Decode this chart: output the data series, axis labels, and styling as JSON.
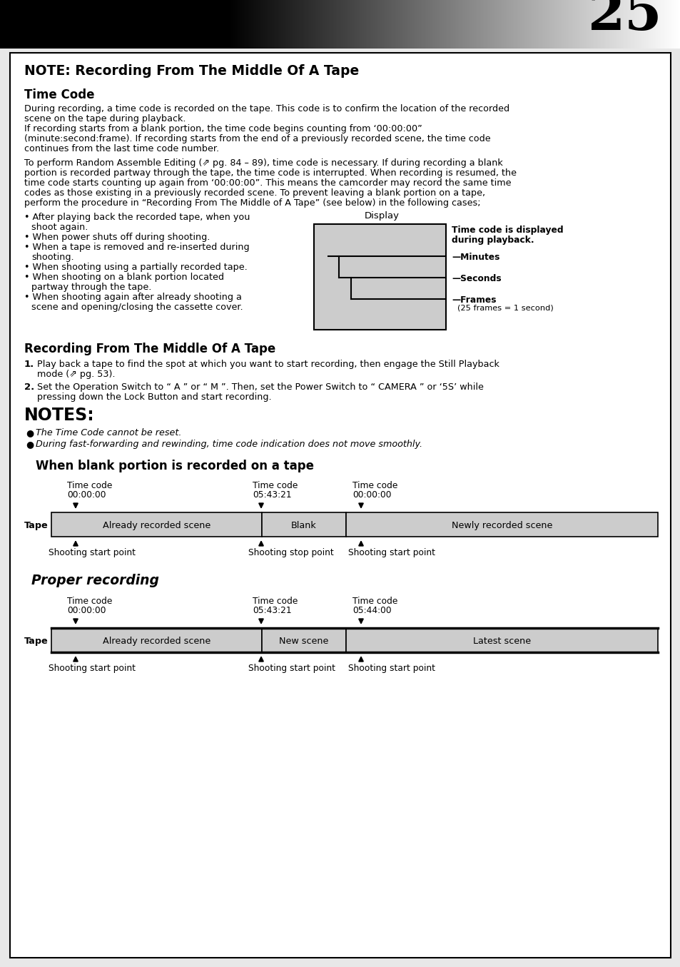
{
  "page_number": "25",
  "main_title": "NOTE: Recording From The Middle Of A Tape",
  "section1_title": "Time Code",
  "para1_lines": [
    "During recording, a time code is recorded on the tape. This code is to confirm the location of the recorded",
    "scene on the tape during playback.",
    "If recording starts from a blank portion, the time code begins counting from ‘00:00:00”",
    "(minute:second:frame). If recording starts from the end of a previously recorded scene, the time code",
    "continues from the last time code number."
  ],
  "para2_lines": [
    "To perform Random Assemble Editing (⇗ pg. 84 – 89), time code is necessary. If during recording a blank",
    "portion is recorded partway through the tape, the time code is interrupted. When recording is resumed, the",
    "time code starts counting up again from ‘00:00:00”. This means the camcorder may record the same time",
    "codes as those existing in a previously recorded scene. To prevent leaving a blank portion on a tape,",
    "perform the procedure in “Recording From The Middle of A Tape” (see below) in the following cases;"
  ],
  "bullets": [
    [
      "After playing back the recorded tape, when you",
      "shoot again."
    ],
    [
      "When power shuts off during shooting."
    ],
    [
      "When a tape is removed and re-inserted during",
      "shooting."
    ],
    [
      "When shooting using a partially recorded tape."
    ],
    [
      "When shooting on a blank portion located",
      "partway through the tape."
    ],
    [
      "When shooting again after already shooting a",
      "scene and opening/closing the cassette cover."
    ]
  ],
  "section2_title": "Recording From The Middle Of A Tape",
  "step1_lines": [
    "Play back a tape to find the spot at which you want to start recording, then engage the Still Playback",
    "mode (⇗ pg. 53)."
  ],
  "step2_lines": [
    "Set the Operation Switch to “ A ” or “ M ”. Then, set the Power Switch to “ CAMERA ” or ‘5S’ while",
    "pressing down the Lock Button and start recording."
  ],
  "note_items": [
    "The Time Code cannot be reset.",
    "During fast-forwarding and rewinding, time code indication does not move smoothly."
  ],
  "diagram1_title": "When blank portion is recorded on a tape",
  "diagram1_tc": [
    "Time code\n00:00:00",
    "Time code\n05:43:21",
    "Time code\n00:00:00"
  ],
  "diagram1_segs": [
    "Already recorded scene",
    "Blank",
    "Newly recorded scene"
  ],
  "diagram1_bot": [
    "Shooting start point",
    "Shooting stop point",
    "Shooting start point"
  ],
  "diagram2_title": "Proper recording",
  "diagram2_tc": [
    "Time code\n00:00:00",
    "Time code\n05:43:21",
    "Time code\n05:44:00"
  ],
  "diagram2_segs": [
    "Already recorded scene",
    "New scene",
    "Latest scene"
  ],
  "diagram2_bot": [
    "Shooting start point",
    "Shooting start point",
    "Shooting start point"
  ]
}
